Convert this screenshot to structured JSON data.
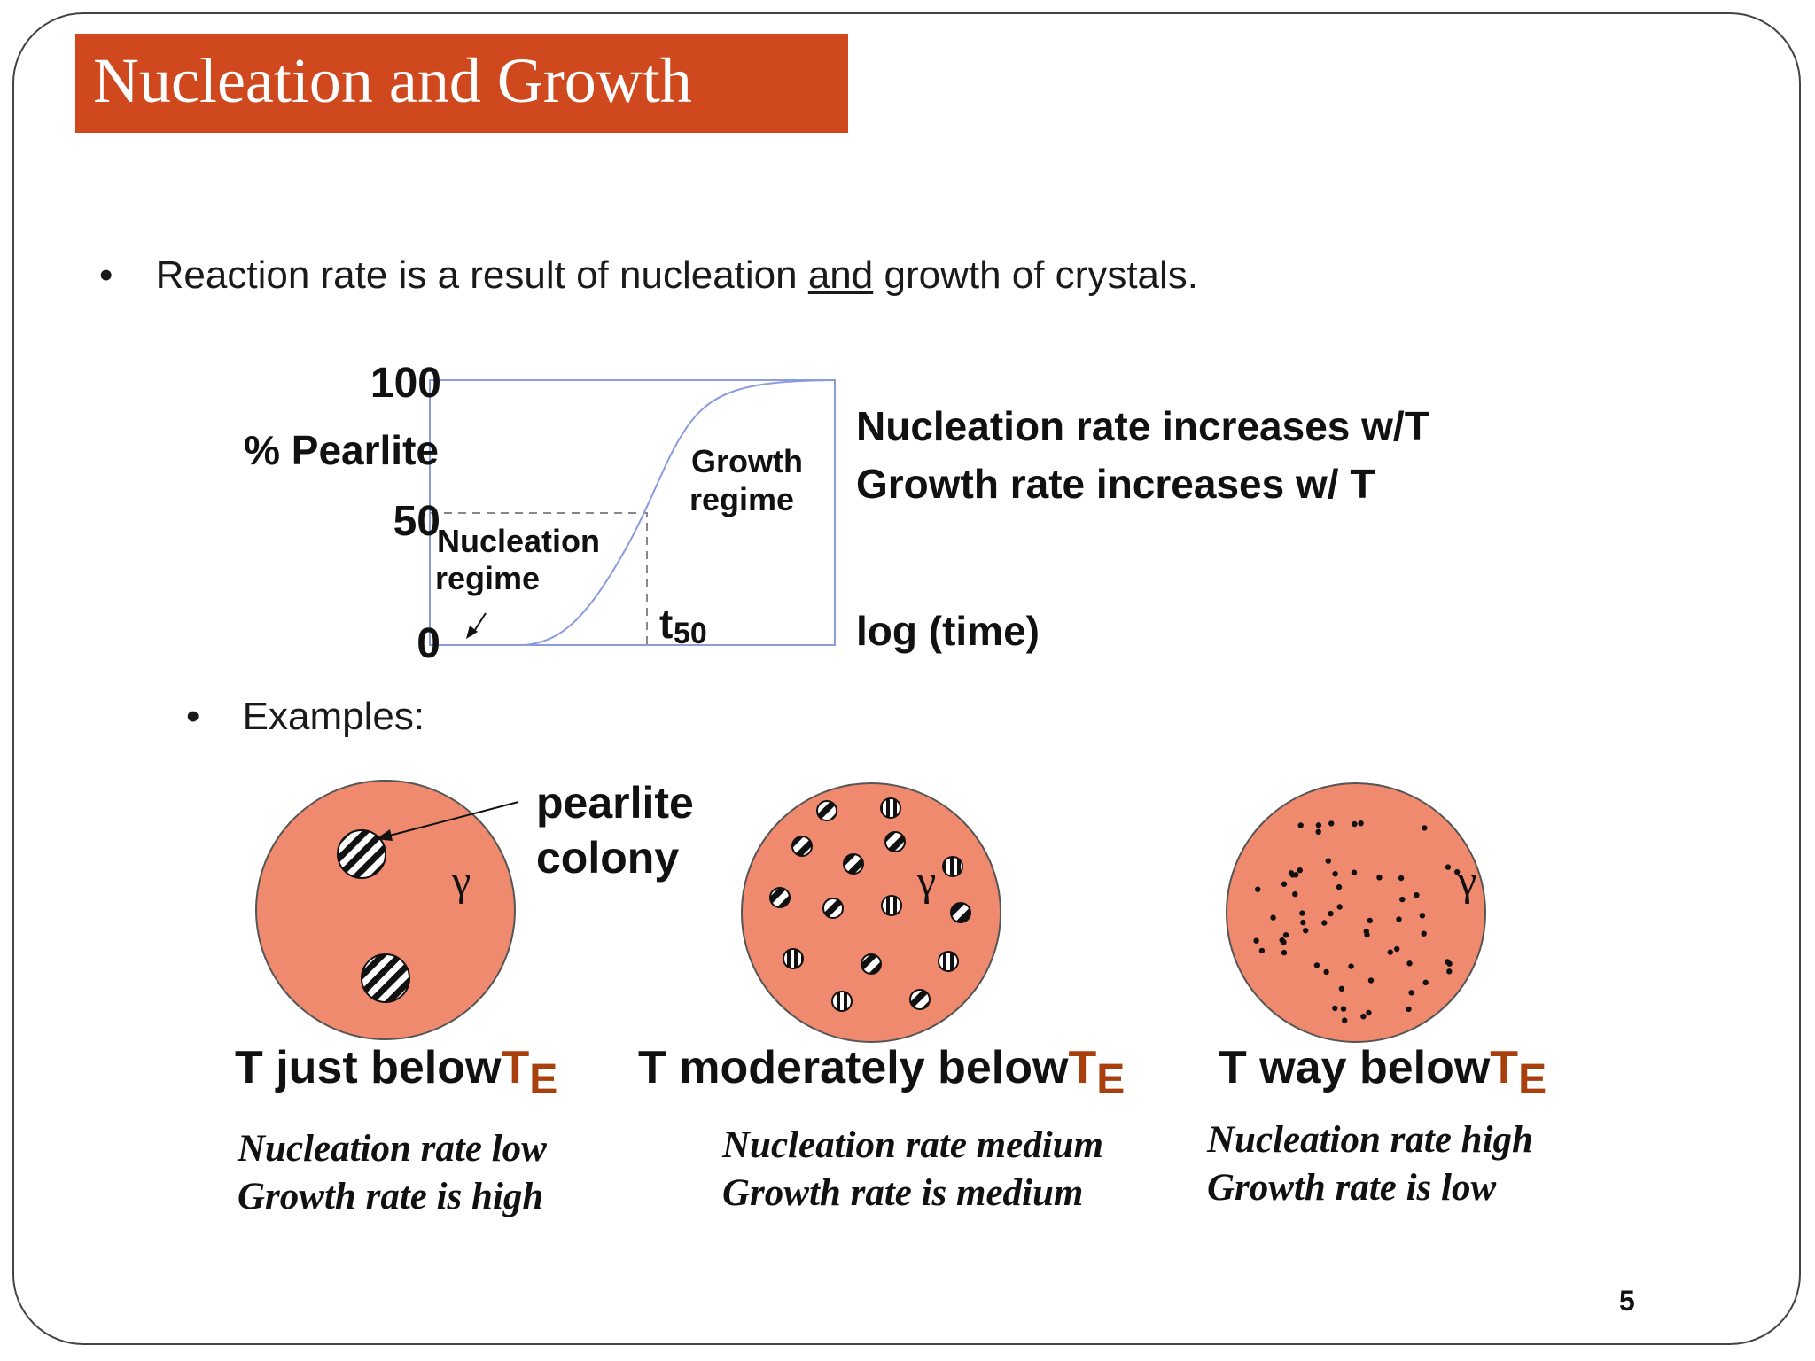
{
  "slide": {
    "title": "Nucleation and Growth",
    "page_number": "5",
    "colors": {
      "title_bg": "#d0481e",
      "grain_fill": "#ef8a6e",
      "te_color": "#a8400e",
      "curve": "#8a9be0"
    }
  },
  "bullets": {
    "main": {
      "pre": "Reaction rate is a result of nucleation ",
      "underlined": "and",
      "post": " growth of crystals."
    },
    "examples": "Examples:"
  },
  "chart_labels": {
    "y_label": "% Pearlite",
    "y_100": "100",
    "y_50": "50",
    "y_0": "0",
    "nucleation_regime": [
      "Nucleation",
      "regime"
    ],
    "growth_regime": [
      "Growth",
      "regime"
    ],
    "t50_main": "t",
    "t50_sub": "50",
    "x_label": "log (time)",
    "note_line1": "Nucleation rate increases w/T",
    "note_line2": "Growth rate increases w/ T"
  },
  "examples": {
    "pearlite_label": [
      "pearlite",
      "colony"
    ],
    "gamma": "γ",
    "panels": [
      {
        "t_prefix": "T just below",
        "te_main": "T",
        "te_sub": "E",
        "caption1": "Nucleation rate low",
        "caption2": "Growth rate is high"
      },
      {
        "t_prefix": "T moderately below",
        "te_main": "T",
        "te_sub": "E",
        "caption1": "Nucleation rate medium",
        "caption2": "Growth rate is medium"
      },
      {
        "t_prefix": "T way below",
        "te_main": "T",
        "te_sub": "E",
        "caption1": "Nucleation rate high",
        "caption2": "Growth rate is low"
      }
    ]
  }
}
